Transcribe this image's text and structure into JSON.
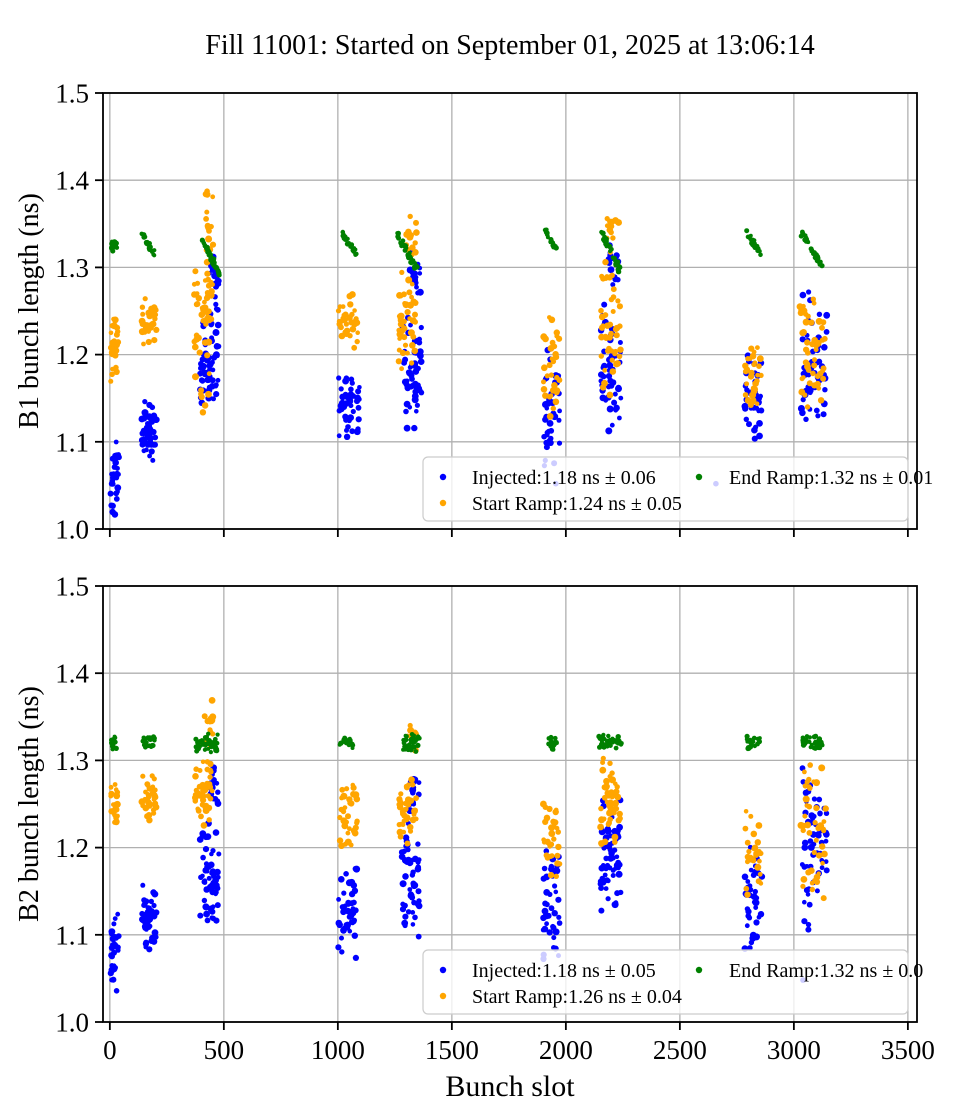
{
  "title": "Fill 11001: Started on September 01, 2025 at 13:06:14",
  "xlabel": "Bunch slot",
  "colors": {
    "injected": "#0000ff",
    "start_ramp": "#ffa500",
    "end_ramp": "#008000",
    "grid": "#b0b0b0",
    "spine": "#000000",
    "legend_border": "#cccccc",
    "legend_fill": "#ffffff"
  },
  "chart_data": [
    {
      "type": "scatter",
      "id": "B1",
      "ylabel": "B1 bunch length (ns)",
      "xlim": [
        -30,
        3540
      ],
      "ylim": [
        1.0,
        1.5
      ],
      "x_ticks": [
        0,
        500,
        1000,
        1500,
        2000,
        2500,
        3000,
        3500
      ],
      "y_ticks": [
        1.0,
        1.1,
        1.2,
        1.3,
        1.4,
        1.5
      ],
      "x_tick_labels": false,
      "grid": true,
      "legend_position": "lower right",
      "legend": [
        {
          "series": "injected",
          "label": "Injected:1.18 ns ± 0.06"
        },
        {
          "series": "start_ramp",
          "label": "Start Ramp:1.24 ns ± 0.05"
        },
        {
          "series": "end_ramp",
          "label": "End Ramp:1.32 ns ± 0.01"
        }
      ],
      "clusters": [
        {
          "series": "end_ramp",
          "x": [
            5,
            32
          ],
          "y": [
            1.317,
            1.336
          ],
          "n": 18,
          "shape": "col"
        },
        {
          "series": "start_ramp",
          "x": [
            2,
            38
          ],
          "y": [
            1.192,
            1.249
          ],
          "n": 20,
          "shape": "col"
        },
        {
          "series": "start_ramp",
          "x": [
            4,
            30
          ],
          "y": [
            1.168,
            1.192
          ],
          "n": 5,
          "shape": "col"
        },
        {
          "series": "injected",
          "x": [
            2,
            40
          ],
          "y": [
            1.005,
            1.122
          ],
          "n": 30,
          "shape": "col"
        },
        {
          "series": "end_ramp",
          "x": [
            142,
            195
          ],
          "y": [
            1.315,
            1.337
          ],
          "n": 24,
          "shape": "diag"
        },
        {
          "series": "start_ramp",
          "x": [
            140,
            205
          ],
          "y": [
            1.206,
            1.272
          ],
          "n": 34,
          "shape": "col"
        },
        {
          "series": "injected",
          "x": [
            140,
            205
          ],
          "y": [
            1.074,
            1.15
          ],
          "n": 44,
          "shape": "col"
        },
        {
          "series": "start_ramp",
          "x": [
            368,
            452
          ],
          "y": [
            1.19,
            1.305
          ],
          "n": 46,
          "shape": "col"
        },
        {
          "series": "start_ramp",
          "x": [
            418,
            458
          ],
          "y": [
            1.3,
            1.41
          ],
          "n": 16,
          "shape": "col"
        },
        {
          "series": "start_ramp",
          "x": [
            372,
            448
          ],
          "y": [
            1.13,
            1.19
          ],
          "n": 8,
          "shape": "col"
        },
        {
          "series": "end_ramp",
          "x": [
            402,
            476
          ],
          "y": [
            1.294,
            1.334
          ],
          "n": 40,
          "shape": "diag"
        },
        {
          "series": "injected",
          "x": [
            395,
            478
          ],
          "y": [
            1.11,
            1.25
          ],
          "n": 55,
          "shape": "col"
        },
        {
          "series": "injected",
          "x": [
            430,
            478
          ],
          "y": [
            1.25,
            1.33
          ],
          "n": 20,
          "shape": "col"
        },
        {
          "series": "end_ramp",
          "x": [
            1018,
            1083
          ],
          "y": [
            1.316,
            1.34
          ],
          "n": 24,
          "shape": "diag"
        },
        {
          "series": "start_ramp",
          "x": [
            1002,
            1088
          ],
          "y": [
            1.202,
            1.274
          ],
          "n": 34,
          "shape": "col"
        },
        {
          "series": "injected",
          "x": [
            1002,
            1096
          ],
          "y": [
            1.098,
            1.185
          ],
          "n": 46,
          "shape": "col"
        },
        {
          "series": "start_ramp",
          "x": [
            1265,
            1340
          ],
          "y": [
            1.175,
            1.3
          ],
          "n": 42,
          "shape": "col"
        },
        {
          "series": "start_ramp",
          "x": [
            1300,
            1345
          ],
          "y": [
            1.3,
            1.375
          ],
          "n": 14,
          "shape": "col"
        },
        {
          "series": "end_ramp",
          "x": [
            1259,
            1351
          ],
          "y": [
            1.295,
            1.339
          ],
          "n": 38,
          "shape": "diag"
        },
        {
          "series": "injected",
          "x": [
            1285,
            1368
          ],
          "y": [
            1.105,
            1.25
          ],
          "n": 50,
          "shape": "col"
        },
        {
          "series": "injected",
          "x": [
            1315,
            1368
          ],
          "y": [
            1.25,
            1.325
          ],
          "n": 16,
          "shape": "col"
        },
        {
          "series": "end_ramp",
          "x": [
            1908,
            1962
          ],
          "y": [
            1.32,
            1.341
          ],
          "n": 20,
          "shape": "diag"
        },
        {
          "series": "start_ramp",
          "x": [
            1900,
            1974
          ],
          "y": [
            1.11,
            1.255
          ],
          "n": 34,
          "shape": "col"
        },
        {
          "series": "injected",
          "x": [
            1900,
            1974
          ],
          "y": [
            1.055,
            1.21
          ],
          "n": 40,
          "shape": "col"
        },
        {
          "series": "start_ramp",
          "x": [
            2152,
            2240
          ],
          "y": [
            1.145,
            1.31
          ],
          "n": 45,
          "shape": "col"
        },
        {
          "series": "start_ramp",
          "x": [
            2180,
            2235
          ],
          "y": [
            1.31,
            1.37
          ],
          "n": 14,
          "shape": "col"
        },
        {
          "series": "end_ramp",
          "x": [
            2158,
            2237
          ],
          "y": [
            1.297,
            1.339
          ],
          "n": 38,
          "shape": "diag"
        },
        {
          "series": "injected",
          "x": [
            2152,
            2242
          ],
          "y": [
            1.098,
            1.27
          ],
          "n": 48,
          "shape": "col"
        },
        {
          "series": "injected",
          "x": [
            2185,
            2242
          ],
          "y": [
            1.27,
            1.335
          ],
          "n": 16,
          "shape": "col"
        },
        {
          "series": "end_ramp",
          "x": [
            2793,
            2851
          ],
          "y": [
            1.316,
            1.34
          ],
          "n": 20,
          "shape": "diag"
        },
        {
          "series": "start_ramp",
          "x": [
            2785,
            2860
          ],
          "y": [
            1.12,
            1.225
          ],
          "n": 30,
          "shape": "col"
        },
        {
          "series": "injected",
          "x": [
            2785,
            2860
          ],
          "y": [
            1.09,
            1.21
          ],
          "n": 36,
          "shape": "col"
        },
        {
          "series": "end_ramp",
          "x": [
            3035,
            3127
          ],
          "y": [
            1.3,
            1.339
          ],
          "n": 36,
          "shape": "diag"
        },
        {
          "series": "start_ramp",
          "x": [
            3026,
            3140
          ],
          "y": [
            1.125,
            1.282
          ],
          "n": 50,
          "shape": "col"
        },
        {
          "series": "injected",
          "x": [
            3026,
            3145
          ],
          "y": [
            1.106,
            1.278
          ],
          "n": 55,
          "shape": "col"
        }
      ],
      "points": [
        {
          "series": "injected",
          "x": 2658,
          "y": 1.052
        },
        {
          "series": "injected",
          "x": 1956,
          "y": 1.052
        }
      ]
    },
    {
      "type": "scatter",
      "id": "B2",
      "ylabel": "B2 bunch length (ns)",
      "xlim": [
        -30,
        3540
      ],
      "ylim": [
        1.0,
        1.5
      ],
      "x_ticks": [
        0,
        500,
        1000,
        1500,
        2000,
        2500,
        3000,
        3500
      ],
      "y_ticks": [
        1.0,
        1.1,
        1.2,
        1.3,
        1.4,
        1.5
      ],
      "x_tick_labels": true,
      "grid": true,
      "legend_position": "lower right",
      "legend": [
        {
          "series": "injected",
          "label": "Injected:1.18 ns ± 0.05"
        },
        {
          "series": "start_ramp",
          "label": "Start Ramp:1.26 ns ± 0.04"
        },
        {
          "series": "end_ramp",
          "label": "End Ramp:1.32 ns ± 0.0"
        }
      ],
      "clusters": [
        {
          "series": "end_ramp",
          "x": [
            5,
            32
          ],
          "y": [
            1.312,
            1.331
          ],
          "n": 18,
          "shape": "col"
        },
        {
          "series": "start_ramp",
          "x": [
            2,
            38
          ],
          "y": [
            1.218,
            1.278
          ],
          "n": 22,
          "shape": "col"
        },
        {
          "series": "injected",
          "x": [
            2,
            40
          ],
          "y": [
            1.025,
            1.145
          ],
          "n": 30,
          "shape": "col"
        },
        {
          "series": "end_ramp",
          "x": [
            142,
            198
          ],
          "y": [
            1.312,
            1.331
          ],
          "n": 24,
          "shape": "col"
        },
        {
          "series": "start_ramp",
          "x": [
            140,
            205
          ],
          "y": [
            1.228,
            1.292
          ],
          "n": 34,
          "shape": "col"
        },
        {
          "series": "injected",
          "x": [
            140,
            205
          ],
          "y": [
            1.062,
            1.168
          ],
          "n": 44,
          "shape": "col"
        },
        {
          "series": "end_ramp",
          "x": [
            373,
            474
          ],
          "y": [
            1.306,
            1.332
          ],
          "n": 45,
          "shape": "col"
        },
        {
          "series": "start_ramp",
          "x": [
            368,
            452
          ],
          "y": [
            1.216,
            1.31
          ],
          "n": 45,
          "shape": "col"
        },
        {
          "series": "start_ramp",
          "x": [
            415,
            452
          ],
          "y": [
            1.31,
            1.385
          ],
          "n": 14,
          "shape": "col"
        },
        {
          "series": "injected",
          "x": [
            395,
            478
          ],
          "y": [
            1.103,
            1.24
          ],
          "n": 55,
          "shape": "col"
        },
        {
          "series": "injected",
          "x": [
            428,
            478
          ],
          "y": [
            1.24,
            1.306
          ],
          "n": 18,
          "shape": "col"
        },
        {
          "series": "end_ramp",
          "x": [
            1008,
            1068
          ],
          "y": [
            1.312,
            1.33
          ],
          "n": 24,
          "shape": "col"
        },
        {
          "series": "start_ramp",
          "x": [
            1002,
            1085
          ],
          "y": [
            1.196,
            1.288
          ],
          "n": 34,
          "shape": "col"
        },
        {
          "series": "injected",
          "x": [
            1002,
            1085
          ],
          "y": [
            1.063,
            1.19
          ],
          "n": 46,
          "shape": "col"
        },
        {
          "series": "end_ramp",
          "x": [
            1285,
            1358
          ],
          "y": [
            1.308,
            1.332
          ],
          "n": 38,
          "shape": "col"
        },
        {
          "series": "start_ramp",
          "x": [
            1265,
            1345
          ],
          "y": [
            1.2,
            1.3
          ],
          "n": 40,
          "shape": "col"
        },
        {
          "series": "start_ramp",
          "x": [
            1300,
            1345
          ],
          "y": [
            1.3,
            1.355
          ],
          "n": 12,
          "shape": "col"
        },
        {
          "series": "injected",
          "x": [
            1280,
            1360
          ],
          "y": [
            1.091,
            1.24
          ],
          "n": 50,
          "shape": "col"
        },
        {
          "series": "injected",
          "x": [
            1315,
            1360
          ],
          "y": [
            1.24,
            1.3
          ],
          "n": 16,
          "shape": "col"
        },
        {
          "series": "end_ramp",
          "x": [
            1908,
            1962
          ],
          "y": [
            1.312,
            1.33
          ],
          "n": 20,
          "shape": "col"
        },
        {
          "series": "start_ramp",
          "x": [
            1900,
            1974
          ],
          "y": [
            1.15,
            1.267
          ],
          "n": 34,
          "shape": "col"
        },
        {
          "series": "injected",
          "x": [
            1900,
            1974
          ],
          "y": [
            1.045,
            1.23
          ],
          "n": 42,
          "shape": "col"
        },
        {
          "series": "end_ramp",
          "x": [
            2140,
            2245
          ],
          "y": [
            1.313,
            1.33
          ],
          "n": 40,
          "shape": "col"
        },
        {
          "series": "start_ramp",
          "x": [
            2152,
            2240
          ],
          "y": [
            1.196,
            1.311
          ],
          "n": 48,
          "shape": "col"
        },
        {
          "series": "injected",
          "x": [
            2152,
            2242
          ],
          "y": [
            1.119,
            1.278
          ],
          "n": 58,
          "shape": "col"
        },
        {
          "series": "end_ramp",
          "x": [
            2793,
            2851
          ],
          "y": [
            1.312,
            1.33
          ],
          "n": 20,
          "shape": "col"
        },
        {
          "series": "start_ramp",
          "x": [
            2785,
            2860
          ],
          "y": [
            1.14,
            1.25
          ],
          "n": 30,
          "shape": "col"
        },
        {
          "series": "injected",
          "x": [
            2785,
            2860
          ],
          "y": [
            1.08,
            1.22
          ],
          "n": 38,
          "shape": "col"
        },
        {
          "series": "end_ramp",
          "x": [
            3030,
            3135
          ],
          "y": [
            1.312,
            1.33
          ],
          "n": 40,
          "shape": "col"
        },
        {
          "series": "start_ramp",
          "x": [
            3026,
            3140
          ],
          "y": [
            1.13,
            1.31
          ],
          "n": 50,
          "shape": "col"
        },
        {
          "series": "injected",
          "x": [
            3026,
            3145
          ],
          "y": [
            1.095,
            1.32
          ],
          "n": 58,
          "shape": "col"
        }
      ],
      "points": [
        {
          "series": "injected",
          "x": 3040,
          "y": 1.048
        },
        {
          "series": "injected",
          "x": 2807,
          "y": 1.085
        }
      ]
    }
  ]
}
